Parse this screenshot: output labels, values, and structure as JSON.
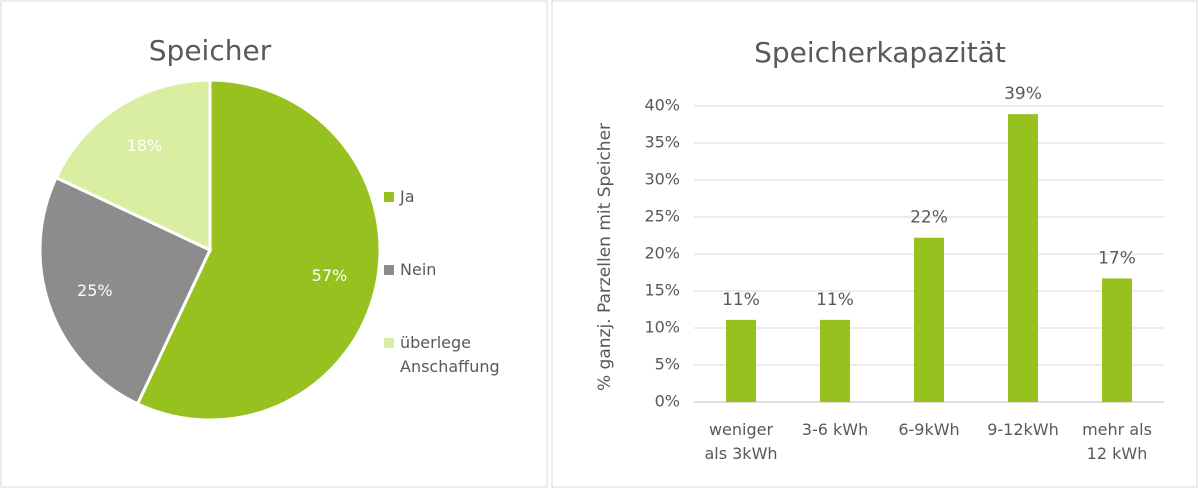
{
  "chart_data": [
    {
      "type": "pie",
      "title": "Speicher",
      "categories": [
        "Ja",
        "Nein",
        "überlege Anschaffung"
      ],
      "values": [
        57,
        25,
        18
      ],
      "value_labels": [
        "57%",
        "25%",
        "18%"
      ],
      "colors": [
        "#97c11f",
        "#8c8c8c",
        "#d9eea0"
      ],
      "legend": "right"
    },
    {
      "type": "bar",
      "title": "Speicherkapazität",
      "y_label": "% ganzj. Parzellen mit Speicher",
      "categories": [
        "weniger als 3kWh",
        "3-6 kWh",
        "6-9kWh",
        "9-12kWh",
        "mehr als 12 kWh"
      ],
      "values": [
        11.1,
        11.1,
        22.2,
        38.9,
        16.7
      ],
      "value_labels": [
        "11%",
        "11%",
        "22%",
        "39%",
        "17%"
      ],
      "color": "#97c11f",
      "ylim": [
        0,
        40
      ],
      "yticks": [
        {
          "value": 0,
          "label": "0%"
        },
        {
          "value": 5,
          "label": "5%"
        },
        {
          "value": 10,
          "label": "10%"
        },
        {
          "value": 15,
          "label": "15%"
        },
        {
          "value": 20,
          "label": "20%"
        },
        {
          "value": 25,
          "label": "25%"
        },
        {
          "value": 30,
          "label": "30%"
        },
        {
          "value": 35,
          "label": "35%"
        },
        {
          "value": 40,
          "label": "40%"
        }
      ],
      "grid": true
    }
  ]
}
